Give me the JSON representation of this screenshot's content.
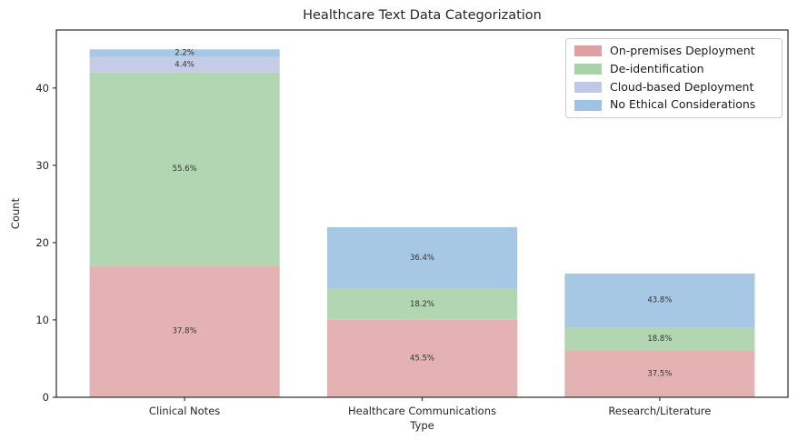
{
  "chart_data": {
    "type": "bar",
    "stacked": true,
    "title": "Healthcare Text Data Categorization",
    "xlabel": "Type",
    "ylabel": "Count",
    "categories": [
      "Clinical Notes",
      "Healthcare Communications",
      "Research/Literature"
    ],
    "series": [
      {
        "name": "On-premises Deployment",
        "color": "#e5b2b3",
        "legend_color": "#dfa0a1",
        "values": [
          17,
          10,
          6
        ],
        "percent_labels": [
          "37.8%",
          "45.5%",
          "37.5%"
        ]
      },
      {
        "name": "De-identification",
        "color": "#b2d6b2",
        "legend_color": "#a8d2a8",
        "values": [
          25,
          4,
          3
        ],
        "percent_labels": [
          "55.6%",
          "18.2%",
          "18.8%"
        ]
      },
      {
        "name": "Cloud-based Deployment",
        "color": "#c6cce8",
        "legend_color": "#bfc8e8",
        "values": [
          2,
          0,
          0
        ],
        "percent_labels": [
          "4.4%",
          "",
          ""
        ]
      },
      {
        "name": "No Ethical Considerations",
        "color": "#a6c8e4",
        "legend_color": "#9fc3e2",
        "values": [
          1,
          8,
          7
        ],
        "percent_labels": [
          "2.2%",
          "36.4%",
          "43.8%"
        ]
      }
    ],
    "totals": [
      45,
      22,
      16
    ],
    "yticks": [
      0,
      10,
      20,
      30,
      40
    ],
    "ylim": [
      0,
      47.5
    ],
    "xlim": [
      -0.54,
      2.54
    ],
    "bar_width": 0.8,
    "grid": false,
    "legend_position": "upper right",
    "axis_color": "#3a3a3a",
    "label_color": "#262626",
    "segment_label_color": "#333333"
  }
}
